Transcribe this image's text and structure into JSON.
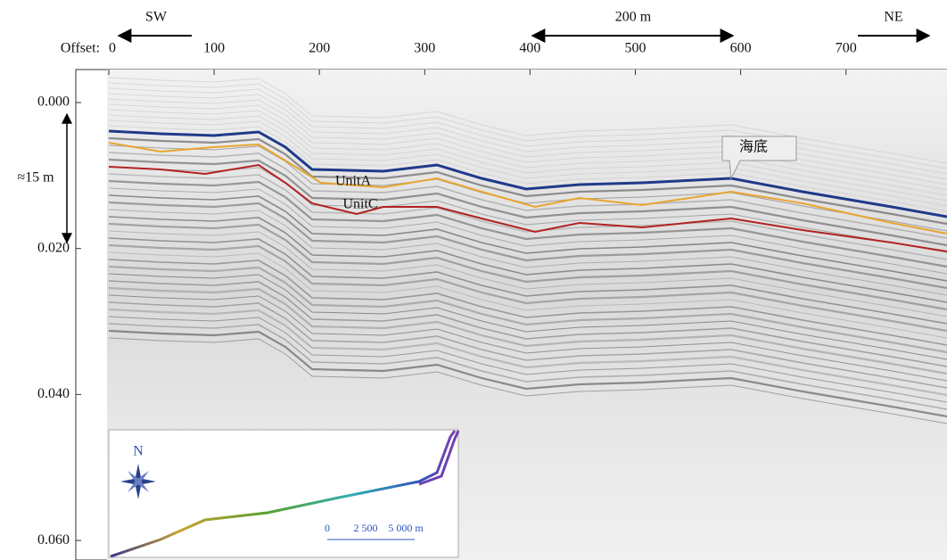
{
  "axes": {
    "x_label": "Offset:",
    "x_ticks": [
      "0",
      "100",
      "200",
      "300",
      "400",
      "500",
      "600",
      "700"
    ],
    "y_ticks": [
      "0.000",
      "0.020",
      "0.040",
      "0.060"
    ]
  },
  "annotations": {
    "left_direction": "SW",
    "right_direction": "NE",
    "horizontal_scale": "200 m",
    "vertical_scale": "≈15 m",
    "unit_a": "UnitA",
    "unit_c": "UnitC",
    "seafloor": "海底"
  },
  "inset": {
    "north": "N",
    "scale_labels": [
      "0",
      "2 500",
      "5 000 m"
    ]
  }
}
